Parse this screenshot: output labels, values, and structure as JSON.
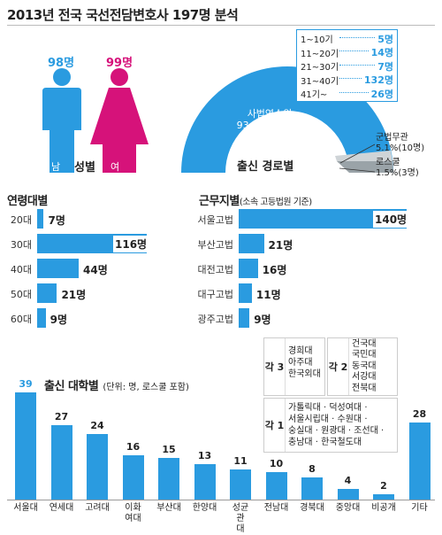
{
  "title": "2013년 전국 국선전담변호사 197명 분석",
  "gender": {
    "label": "성별",
    "male": {
      "count": "98명",
      "tag": "남"
    },
    "female": {
      "count": "99명",
      "tag": "여"
    }
  },
  "career": {
    "label": "출신 경로별",
    "ranges": [
      {
        "label": "1~10기",
        "value": "5명"
      },
      {
        "label": "11~20기",
        "value": "14명"
      },
      {
        "label": "21~30기",
        "value": "7명"
      },
      {
        "label": "31~40기",
        "value": "132명"
      },
      {
        "label": "41기~",
        "value": "26명"
      }
    ],
    "slices": [
      {
        "name": "사법연수원",
        "pct": "93.4%(184명)",
        "value": 93.4
      },
      {
        "name": "군법무관",
        "pct": "5.1%(10명)",
        "value": 5.1
      },
      {
        "name": "로스쿨",
        "pct": "1.5%(3명)",
        "value": 1.5
      }
    ],
    "colors": {
      "main": "#2a9be0",
      "military": "#9aa3a8",
      "lawschool": "#cfd4d7"
    }
  },
  "age": {
    "title": "연령대별",
    "rows": [
      {
        "label": "20대",
        "value": 7,
        "text": "7명"
      },
      {
        "label": "30대",
        "value": 116,
        "text": "116명"
      },
      {
        "label": "40대",
        "value": 44,
        "text": "44명"
      },
      {
        "label": "50대",
        "value": 21,
        "text": "21명"
      },
      {
        "label": "60대",
        "value": 9,
        "text": "9명"
      }
    ]
  },
  "region": {
    "title": "근무지별",
    "subtitle": "(소속 고등법원 기준)",
    "rows": [
      {
        "label": "서울고법",
        "value": 140,
        "text": "140명"
      },
      {
        "label": "부산고법",
        "value": 21,
        "text": "21명"
      },
      {
        "label": "대전고법",
        "value": 16,
        "text": "16명"
      },
      {
        "label": "대구고법",
        "value": 11,
        "text": "11명"
      },
      {
        "label": "광주고법",
        "value": 9,
        "text": "9명"
      }
    ]
  },
  "university": {
    "title": "출신 대학별",
    "subtitle": "(단위: 명, 로스쿨 포함)",
    "each3": {
      "tag": "각 3",
      "names": [
        "경희대",
        "아주대",
        "한국외대"
      ]
    },
    "each2": {
      "tag": "각 2",
      "names": [
        "건국대",
        "국민대",
        "동국대",
        "서강대",
        "전북대"
      ]
    },
    "each1": {
      "tag": "각 1",
      "names": [
        "가톨릭대 · 덕성여대 ·",
        "서울시립대 · 수원대 ·",
        "숭실대 · 원광대 · 조선대 ·",
        "충남대 · 한국철도대"
      ]
    }
  },
  "chart_data": [
    {
      "type": "bar",
      "title": "연령대별",
      "categories": [
        "20대",
        "30대",
        "40대",
        "50대",
        "60대"
      ],
      "values": [
        7,
        116,
        44,
        21,
        9
      ]
    },
    {
      "type": "bar",
      "title": "근무지별",
      "categories": [
        "서울고법",
        "부산고법",
        "대전고법",
        "대구고법",
        "광주고법"
      ],
      "values": [
        140,
        21,
        16,
        11,
        9
      ]
    },
    {
      "type": "pie",
      "title": "출신 경로별",
      "categories": [
        "사법연수원",
        "군법무관",
        "로스쿨"
      ],
      "values": [
        93.4,
        5.1,
        1.5
      ]
    },
    {
      "type": "bar",
      "title": "출신 대학별",
      "categories": [
        "서울대",
        "연세대",
        "고려대",
        "이화\n여대",
        "부산대",
        "한양대",
        "성균\n관\n대",
        "전남대",
        "경북대",
        "중앙대",
        "비공개",
        "기타"
      ],
      "values": [
        39,
        27,
        24,
        16,
        15,
        13,
        11,
        10,
        8,
        4,
        2,
        28
      ],
      "ylim": [
        0,
        40
      ]
    }
  ]
}
